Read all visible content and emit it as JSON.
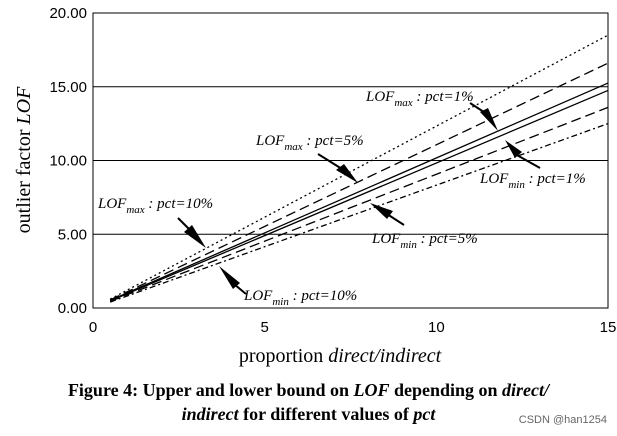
{
  "chart_data": {
    "type": "line",
    "xlim": [
      0,
      15
    ],
    "ylim": [
      0,
      20
    ],
    "xticks": [
      "0",
      "5",
      "10",
      "15"
    ],
    "yticks": [
      "0.00",
      "5.00",
      "10.00",
      "15.00",
      "20.00"
    ],
    "ylabel": {
      "pre": "outlier factor ",
      "em": "LOF"
    },
    "xlabel": {
      "pre": "proportion ",
      "em": "direct/indirect"
    },
    "grid": "horizontal",
    "series": [
      {
        "style": "dotted",
        "x": [
          0.5,
          15
        ],
        "y": [
          0.6,
          18.5
        ]
      },
      {
        "style": "dashed",
        "x": [
          0.5,
          15
        ],
        "y": [
          0.55,
          16.6
        ]
      },
      {
        "style": "solid",
        "x": [
          0.5,
          15
        ],
        "y": [
          0.52,
          15.25
        ]
      },
      {
        "style": "solid",
        "x": [
          0.5,
          15
        ],
        "y": [
          0.48,
          14.75
        ]
      },
      {
        "style": "dashed",
        "x": [
          0.5,
          15
        ],
        "y": [
          0.45,
          13.6
        ]
      },
      {
        "style": "dash-dot",
        "x": [
          0.5,
          15
        ],
        "y": [
          0.4,
          12.5
        ]
      }
    ],
    "annotations": [
      {
        "main": "LOF",
        "sub": "max",
        "rest": " : pct=1%"
      },
      {
        "main": "LOF",
        "sub": "max",
        "rest": " : pct=5%"
      },
      {
        "main": "LOF",
        "sub": "max",
        "rest": " : pct=10%"
      },
      {
        "main": "LOF",
        "sub": "min",
        "rest": " : pct=1%"
      },
      {
        "main": "LOF",
        "sub": "min",
        "rest": " : pct=5%"
      },
      {
        "main": "LOF",
        "sub": "min",
        "rest": " : pct=10%"
      }
    ]
  },
  "caption": {
    "line1_a": "Figure 4: Upper and lower bound on ",
    "line1_b": "LOF",
    "line1_c": " depending on ",
    "line1_d": "direct/",
    "line2_a": "indirect",
    "line2_b": " for different values of ",
    "line2_c": "pct"
  },
  "watermark": "CSDN @han1254"
}
